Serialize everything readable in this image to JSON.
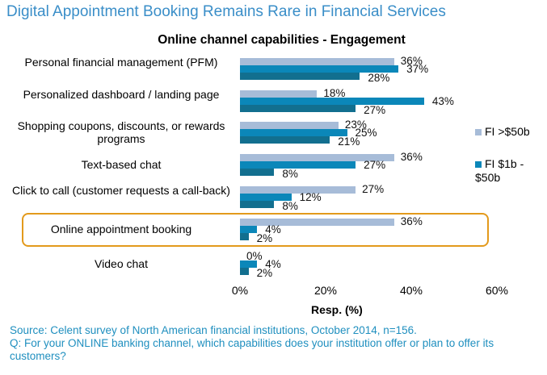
{
  "header": {
    "title": "Digital Appointment Booking Remains Rare in Financial Services"
  },
  "chart_data": {
    "type": "bar",
    "orientation": "horizontal",
    "title": "Online channel capabilities - Engagement",
    "xlabel": "Resp. (%)",
    "xlim": [
      0,
      60
    ],
    "xticks": [
      "0%",
      "20%",
      "40%",
      "60%"
    ],
    "categories": [
      "Personal financial management (PFM)",
      "Personalized dashboard / landing page",
      "Shopping coupons, discounts, or rewards programs",
      "Text-based chat",
      "Click to call (customer requests a call-back)",
      "Online appointment booking",
      "Video chat"
    ],
    "series": [
      {
        "name": "FI >$50b",
        "color": "#a7bcd8",
        "values": [
          36,
          18,
          23,
          36,
          27,
          36,
          0
        ]
      },
      {
        "name": "FI $1b - $50b",
        "color": "#0b87b9",
        "values": [
          37,
          43,
          25,
          27,
          12,
          4,
          4
        ]
      },
      {
        "name": "",
        "color": "#126f8f",
        "values": [
          28,
          27,
          21,
          8,
          8,
          2,
          2
        ]
      }
    ],
    "legend_position": "right",
    "highlight_category": "Online appointment booking"
  },
  "footer": {
    "source": "Source: Celent survey of North American financial institutions, October 2014, n=156.",
    "question": "Q: For your ONLINE banking channel, which capabilities does your institution offer or plan to offer its customers?"
  }
}
